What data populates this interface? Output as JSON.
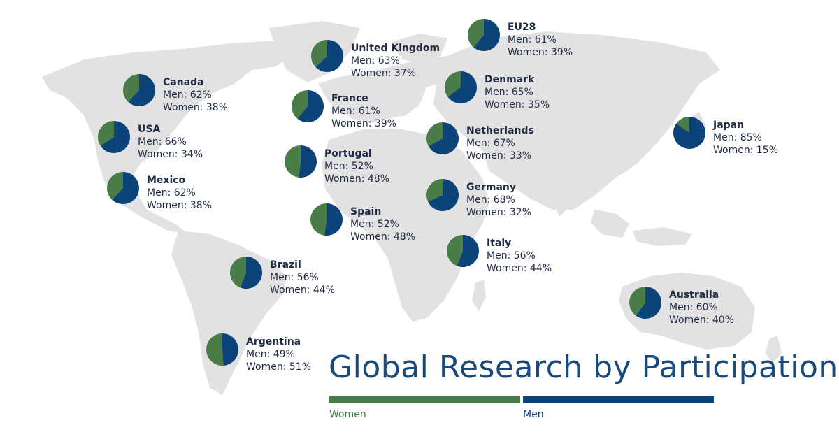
{
  "colors": {
    "women": "#4a7c48",
    "men": "#0c4479",
    "map": "#e2e2e2",
    "title": "#1a4a7a"
  },
  "chart_data": {
    "type": "pie",
    "title": "Global Research by Participation",
    "legend": [
      {
        "key": "women",
        "label": "Women"
      },
      {
        "key": "men",
        "label": "Men"
      }
    ],
    "countries": [
      {
        "id": "eu28",
        "name": "EU28",
        "men": 61,
        "women": 39,
        "men_text": "Men: 61%",
        "women_text": "Women: 39%"
      },
      {
        "id": "uk",
        "name": "United Kingdom",
        "men": 63,
        "women": 37,
        "men_text": "Men: 63%",
        "women_text": "Women: 37%"
      },
      {
        "id": "canada",
        "name": "Canada",
        "men": 62,
        "women": 38,
        "men_text": "Men: 62%",
        "women_text": "Women: 38%"
      },
      {
        "id": "denmark",
        "name": "Denmark",
        "men": 65,
        "women": 35,
        "men_text": "Men: 65%",
        "women_text": "Women: 35%"
      },
      {
        "id": "france",
        "name": "France",
        "men": 61,
        "women": 39,
        "men_text": "Men: 61%",
        "women_text": "Women: 39%"
      },
      {
        "id": "usa",
        "name": "USA",
        "men": 66,
        "women": 34,
        "men_text": "Men: 66%",
        "women_text": "Women: 34%"
      },
      {
        "id": "netherlands",
        "name": "Netherlands",
        "men": 67,
        "women": 33,
        "men_text": "Men: 67%",
        "women_text": "Women: 33%"
      },
      {
        "id": "japan",
        "name": "Japan",
        "men": 85,
        "women": 15,
        "men_text": "Men: 85%",
        "women_text": "Women: 15%"
      },
      {
        "id": "portugal",
        "name": "Portugal",
        "men": 52,
        "women": 48,
        "men_text": "Men: 52%",
        "women_text": "Women: 48%"
      },
      {
        "id": "mexico",
        "name": "Mexico",
        "men": 62,
        "women": 38,
        "men_text": "Men: 62%",
        "women_text": "Women: 38%"
      },
      {
        "id": "germany",
        "name": "Germany",
        "men": 68,
        "women": 32,
        "men_text": "Men: 68%",
        "women_text": "Women: 32%"
      },
      {
        "id": "spain",
        "name": "Spain",
        "men": 52,
        "women": 48,
        "men_text": "Men: 52%",
        "women_text": "Women: 48%"
      },
      {
        "id": "italy",
        "name": "Italy",
        "men": 56,
        "women": 44,
        "men_text": "Men: 56%",
        "women_text": "Women: 44%"
      },
      {
        "id": "brazil",
        "name": "Brazil",
        "men": 56,
        "women": 44,
        "men_text": "Men: 56%",
        "women_text": "Women: 44%"
      },
      {
        "id": "australia",
        "name": "Australia",
        "men": 60,
        "women": 40,
        "men_text": "Men: 60%",
        "women_text": "Women: 40%"
      },
      {
        "id": "argentina",
        "name": "Argentina",
        "men": 49,
        "women": 51,
        "men_text": "Men: 49%",
        "women_text": "Women: 51%"
      }
    ]
  }
}
